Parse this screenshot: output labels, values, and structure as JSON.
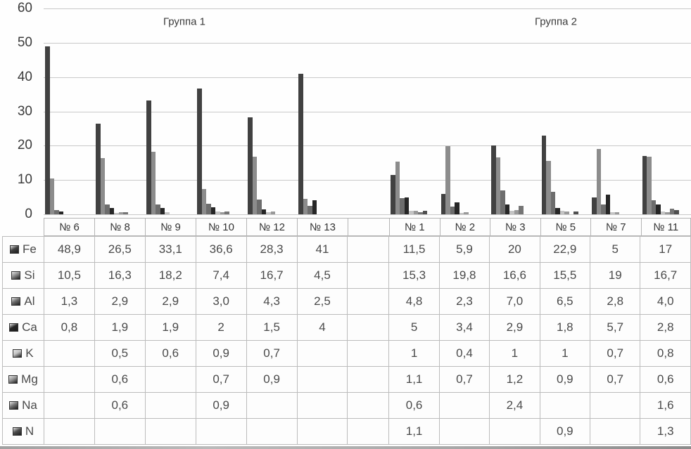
{
  "chart_data": {
    "type": "bar",
    "title": "",
    "group_labels": [
      "Группа 1",
      "Группа 2"
    ],
    "categories": [
      "№ 6",
      "№ 8",
      "№ 9",
      "№ 10",
      "№ 12",
      "№ 13",
      "№ 1",
      "№ 2",
      "№ 3",
      "№ 5",
      "№ 7",
      "№ 11"
    ],
    "groups": [
      {
        "label": "Группа 1",
        "categories": [
          "№ 6",
          "№ 8",
          "№ 9",
          "№ 10",
          "№ 12",
          "№ 13"
        ]
      },
      {
        "label": "Группа 2",
        "categories": [
          "№ 1",
          "№ 2",
          "№ 3",
          "№ 5",
          "№ 7",
          "№ 11"
        ]
      }
    ],
    "xlabel": "",
    "ylabel": "",
    "ylim": [
      0,
      60
    ],
    "yticks": [
      0,
      10,
      20,
      30,
      40,
      50,
      60
    ],
    "grid": true,
    "legend_position": "table-left-column",
    "series": [
      {
        "name": "Fe",
        "color": "#414141",
        "values": [
          48.9,
          26.5,
          33.1,
          36.6,
          28.3,
          41,
          11.5,
          5.9,
          20,
          22.9,
          5,
          17
        ]
      },
      {
        "name": "Si",
        "color": "#8c8c8c",
        "values": [
          10.5,
          16.3,
          18.2,
          7.4,
          16.7,
          4.5,
          15.3,
          19.8,
          16.6,
          15.5,
          19,
          16.7
        ]
      },
      {
        "name": "Al",
        "color": "#6d6d6d",
        "values": [
          1.3,
          2.9,
          2.9,
          3.0,
          4.3,
          2.5,
          4.8,
          2.3,
          7.0,
          6.5,
          2.8,
          4.0
        ]
      },
      {
        "name": "Ca",
        "color": "#262626",
        "values": [
          0.8,
          1.9,
          1.9,
          2,
          1.5,
          4,
          5,
          3.4,
          2.9,
          1.8,
          5.7,
          2.8
        ]
      },
      {
        "name": "K",
        "color": "#c4c4c4",
        "values": [
          null,
          0.5,
          0.6,
          0.9,
          0.7,
          null,
          1,
          0.4,
          1,
          1,
          0.7,
          0.8
        ]
      },
      {
        "name": "Mg",
        "color": "#999999",
        "values": [
          null,
          0.6,
          null,
          0.7,
          0.9,
          null,
          1.1,
          0.7,
          1.2,
          0.9,
          0.7,
          0.6
        ]
      },
      {
        "name": "Na",
        "color": "#757575",
        "values": [
          null,
          0.6,
          null,
          0.9,
          null,
          null,
          0.6,
          null,
          2.4,
          null,
          null,
          1.6
        ]
      },
      {
        "name": "N",
        "color": "#4f4f4f",
        "values": [
          null,
          null,
          null,
          null,
          null,
          null,
          1.1,
          null,
          null,
          0.9,
          null,
          1.3
        ]
      }
    ]
  },
  "table": {
    "header_cells": [
      "№ 6",
      "№ 8",
      "№ 9",
      "№ 10",
      "№ 12",
      "№ 13",
      "",
      "№ 1",
      "№ 2",
      "№ 3",
      "№ 5",
      "№ 7",
      "№ 11"
    ],
    "rows": [
      {
        "label": "Fe",
        "swatch_color": "#414141",
        "cells": [
          "48,9",
          "26,5",
          "33,1",
          "36,6",
          "28,3",
          "41",
          "",
          "11,5",
          "5,9",
          "20",
          "22,9",
          "5",
          "17"
        ]
      },
      {
        "label": "Si",
        "swatch_color": "#8c8c8c",
        "cells": [
          "10,5",
          "16,3",
          "18,2",
          "7,4",
          "16,7",
          "4,5",
          "",
          "15,3",
          "19,8",
          "16,6",
          "15,5",
          "19",
          "16,7"
        ]
      },
      {
        "label": "Al",
        "swatch_color": "#6d6d6d",
        "cells": [
          "1,3",
          "2,9",
          "2,9",
          "3,0",
          "4,3",
          "2,5",
          "",
          "4,8",
          "2,3",
          "7,0",
          "6,5",
          "2,8",
          "4,0"
        ]
      },
      {
        "label": "Ca",
        "swatch_color": "#262626",
        "cells": [
          "0,8",
          "1,9",
          "1,9",
          "2",
          "1,5",
          "4",
          "",
          "5",
          "3,4",
          "2,9",
          "1,8",
          "5,7",
          "2,8"
        ]
      },
      {
        "label": "K",
        "swatch_color": "#c4c4c4",
        "cells": [
          "",
          "0,5",
          "0,6",
          "0,9",
          "0,7",
          "",
          "",
          "1",
          "0,4",
          "1",
          "1",
          "0,7",
          "0,8"
        ]
      },
      {
        "label": "Mg",
        "swatch_color": "#999999",
        "cells": [
          "",
          "0,6",
          "",
          "0,7",
          "0,9",
          "",
          "",
          "1,1",
          "0,7",
          "1,2",
          "0,9",
          "0,7",
          "0,6"
        ]
      },
      {
        "label": "Na",
        "swatch_color": "#757575",
        "cells": [
          "",
          "0,6",
          "",
          "0,9",
          "",
          "",
          "",
          "0,6",
          "",
          "2,4",
          "",
          "",
          "1,6"
        ]
      },
      {
        "label": "N",
        "swatch_color": "#4f4f4f",
        "cells": [
          "",
          "",
          "",
          "",
          "",
          "",
          "",
          "1,1",
          "",
          "",
          "0,9",
          "",
          "1,3"
        ]
      }
    ]
  },
  "colors": {
    "gridline": "#c9c9c9",
    "table_border": "#bcbcbc",
    "text": "#3b3b3b"
  }
}
